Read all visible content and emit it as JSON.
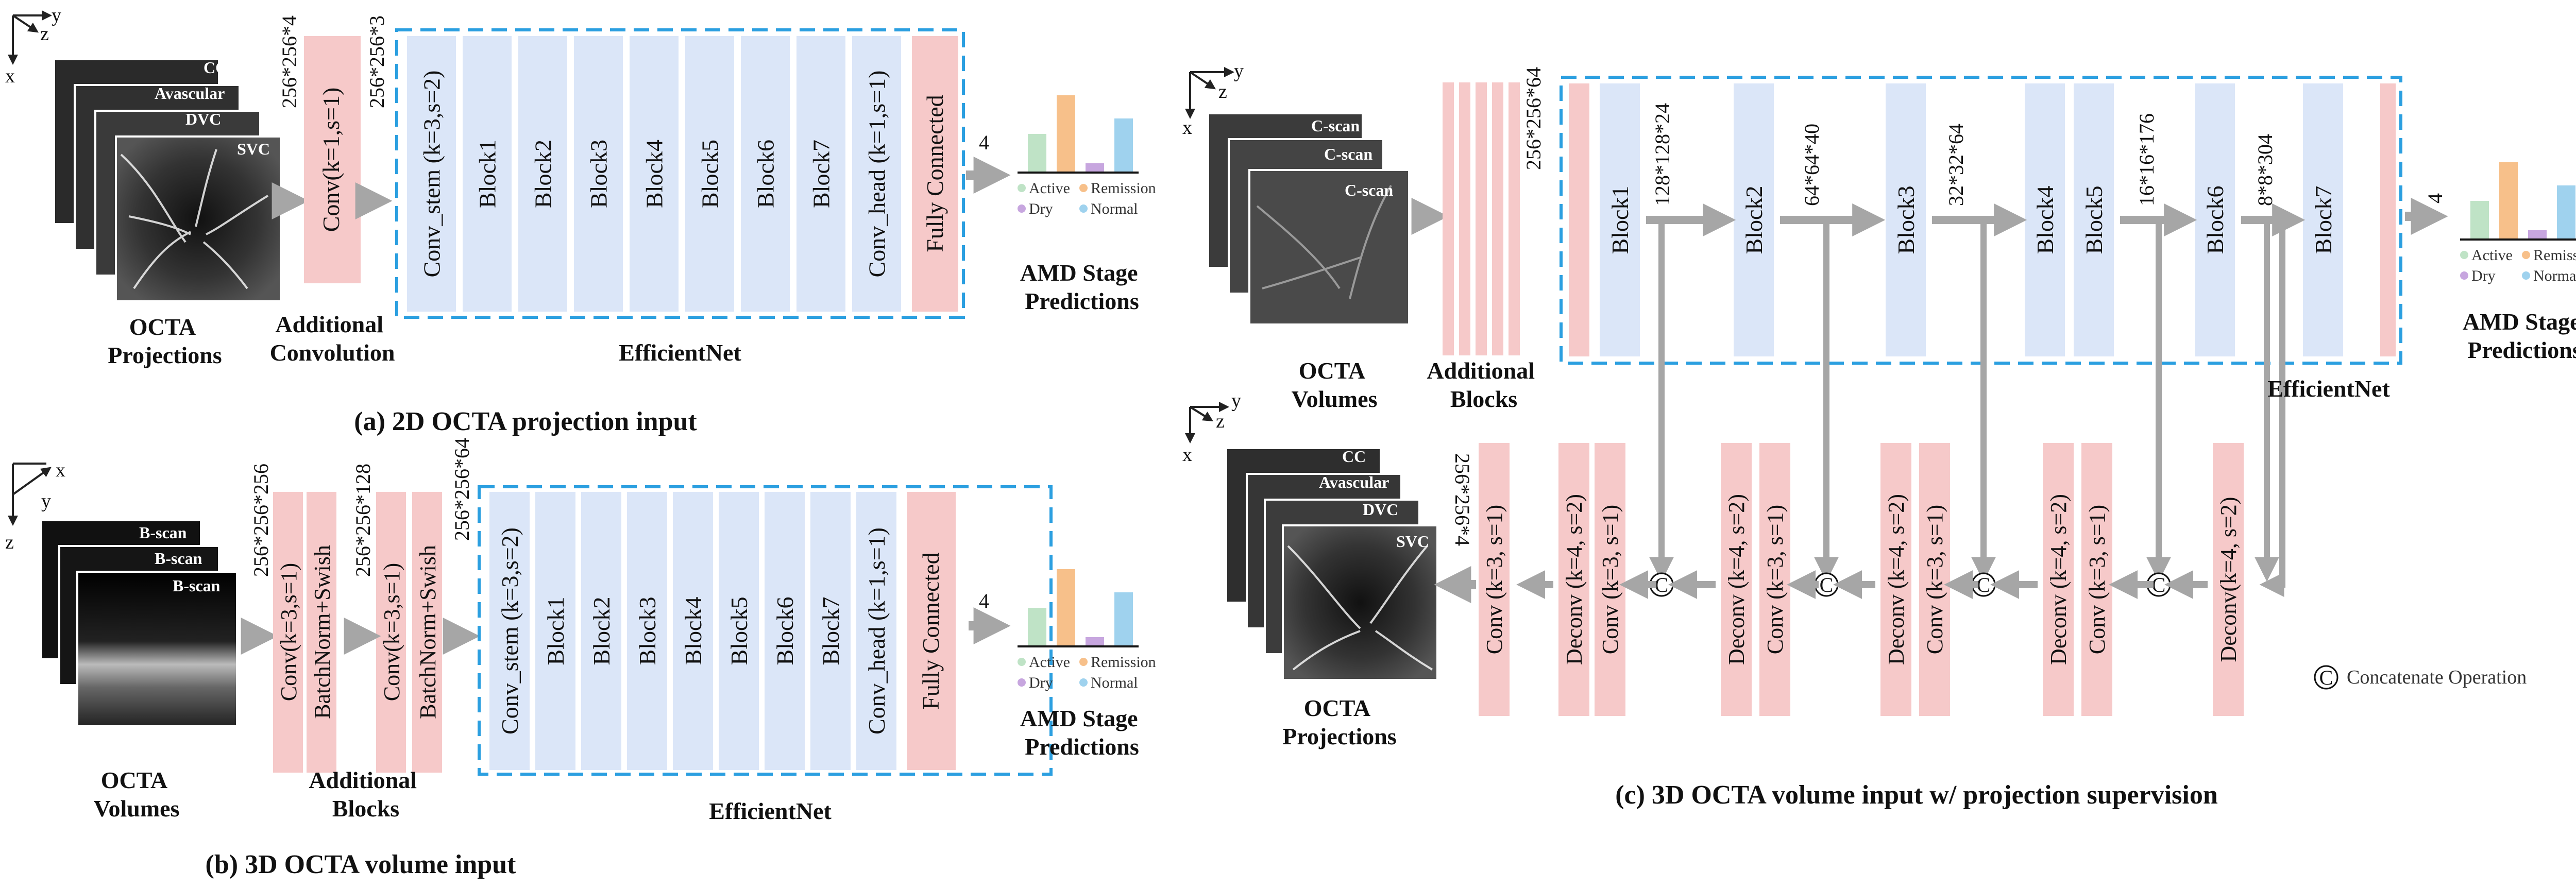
{
  "panel_a": {
    "caption": "(a) 2D OCTA projection input",
    "axes": {
      "a": "y",
      "b": "z",
      "c": "x"
    },
    "image_layers": [
      "CC",
      "Avascular",
      "DVC",
      "SVC"
    ],
    "input_label": "OCTA\nProjections",
    "dim_in": "256*256*4",
    "extra_block": "Conv(k=1,s=1)",
    "dim_mid": "256*256*3",
    "extra_label": "Additional\nConvolution",
    "effnet_blocks": [
      "Conv_stem (k=3,s=2)",
      "Block1",
      "Block2",
      "Block3",
      "Block4",
      "Block5",
      "Block6",
      "Block7",
      "Conv_head (k=1,s=1)"
    ],
    "fc": "Fully Connected",
    "effnet_label": "EfficientNet",
    "out_dim": "4",
    "pred_label": "AMD Stage\nPredictions"
  },
  "panel_b": {
    "caption": "(b) 3D OCTA volume input",
    "axes": {
      "a": "x",
      "b": "y",
      "c": "z"
    },
    "image_layers": [
      "B-scan",
      "B-scan",
      "B-scan"
    ],
    "input_label": "OCTA\nVolumes",
    "extra_blocks": [
      "Conv(k=3,s=1)",
      "BatchNorm+Swish",
      "Conv(k=3,s=1)",
      "BatchNorm+Swish"
    ],
    "dims": [
      "256*256*256",
      "256*256*128",
      "256*256*64"
    ],
    "extra_label": "Additional\nBlocks",
    "effnet_blocks": [
      "Conv_stem (k=3,s=2)",
      "Block1",
      "Block2",
      "Block3",
      "Block4",
      "Block5",
      "Block6",
      "Block7",
      "Conv_head (k=1,s=1)"
    ],
    "fc": "Fully Connected",
    "effnet_label": "EfficientNet",
    "out_dim": "4",
    "pred_label": "AMD Stage\nPredictions"
  },
  "panel_c": {
    "caption": "(c) 3D OCTA volume input w/ projection supervision",
    "axes_top": {
      "a": "y",
      "b": "z",
      "c": "x"
    },
    "axes_bottom": {
      "a": "y",
      "b": "z",
      "c": "x"
    },
    "image_layers_top": [
      "C-scan",
      "C-scan",
      "C-scan"
    ],
    "input_label": "OCTA\nVolumes",
    "extra_label": "Additional\nBlocks",
    "dim_in": "256*256*64",
    "blocks": [
      "Block1",
      "Block2",
      "Block3",
      "Block4",
      "Block5",
      "Block6",
      "Block7"
    ],
    "dims": [
      "128*128*24",
      "64*64*40",
      "32*32*64",
      "16*16*176",
      "8*8*304"
    ],
    "effnet_label": "EfficientNet",
    "out_dim": "4",
    "pred_label": "AMD Stage\nPredictions",
    "decoder": [
      {
        "deconv": "Deconv (k=4, s=2)",
        "conv": "Conv (k=3, s=1)"
      },
      {
        "deconv": "Deconv (k=4, s=2)",
        "conv": "Conv (k=3, s=1)"
      },
      {
        "deconv": "Deconv (k=4, s=2)",
        "conv": "Conv (k=3, s=1)"
      },
      {
        "deconv": "Deconv (k=4, s=2)",
        "conv": "Conv (k=3, s=1)"
      },
      {
        "deconv": "Deconv(k=4, s=2)",
        "conv": ""
      }
    ],
    "final_conv": "Conv (k=3, s=1)",
    "out_dim_proj": "256*256*4",
    "image_layers_bottom": [
      "CC",
      "Avascular",
      "DVC",
      "SVC"
    ],
    "proj_label": "OCTA\nProjections",
    "concat_symbol": "C",
    "concat_legend": "Concatenate Operation"
  },
  "legend": {
    "items": [
      "Active",
      "Remission",
      "Dry",
      "Normal"
    ]
  },
  "bar_values": [
    0.5,
    1.0,
    0.12,
    0.7
  ],
  "colors": {
    "active": "#bfe3c6",
    "remission": "#f7c08a",
    "dry": "#c7a6df",
    "normal": "#9fd2ee",
    "pink": "#f6c9c9",
    "blue_block": "#dbe6f8",
    "dash": "#2b9fe0",
    "arrow": "#a6a6a6"
  }
}
